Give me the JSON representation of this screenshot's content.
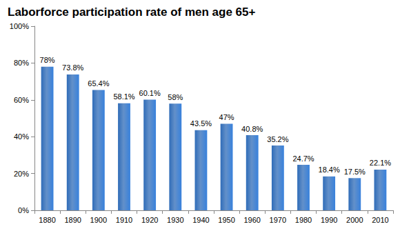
{
  "chart_data": {
    "type": "bar",
    "title": "Laborforce participation rate of men age 65+",
    "categories": [
      "1880",
      "1890",
      "1900",
      "1910",
      "1920",
      "1930",
      "1940",
      "1950",
      "1960",
      "1970",
      "1980",
      "1990",
      "2000",
      "2010"
    ],
    "values": [
      78,
      73.8,
      65.4,
      58.1,
      60.1,
      58,
      43.5,
      47,
      40.8,
      35.2,
      24.7,
      18.4,
      17.5,
      22.1
    ],
    "value_labels": [
      "78%",
      "73.8%",
      "65.4%",
      "58.1%",
      "60.1%",
      "58%",
      "43.5%",
      "47%",
      "40.8%",
      "35.2%",
      "24.7%",
      "18.4%",
      "17.5%",
      "22.1%"
    ],
    "data_labels": true,
    "color": "#2f6cb8",
    "ylim": [
      0,
      100
    ],
    "yticks": [
      {
        "value": 0,
        "label": "0%"
      },
      {
        "value": 20,
        "label": "20%"
      },
      {
        "value": 40,
        "label": "40%"
      },
      {
        "value": 60,
        "label": "60%"
      },
      {
        "value": 80,
        "label": "80%"
      },
      {
        "value": 100,
        "label": "100%"
      }
    ],
    "grid": false
  }
}
